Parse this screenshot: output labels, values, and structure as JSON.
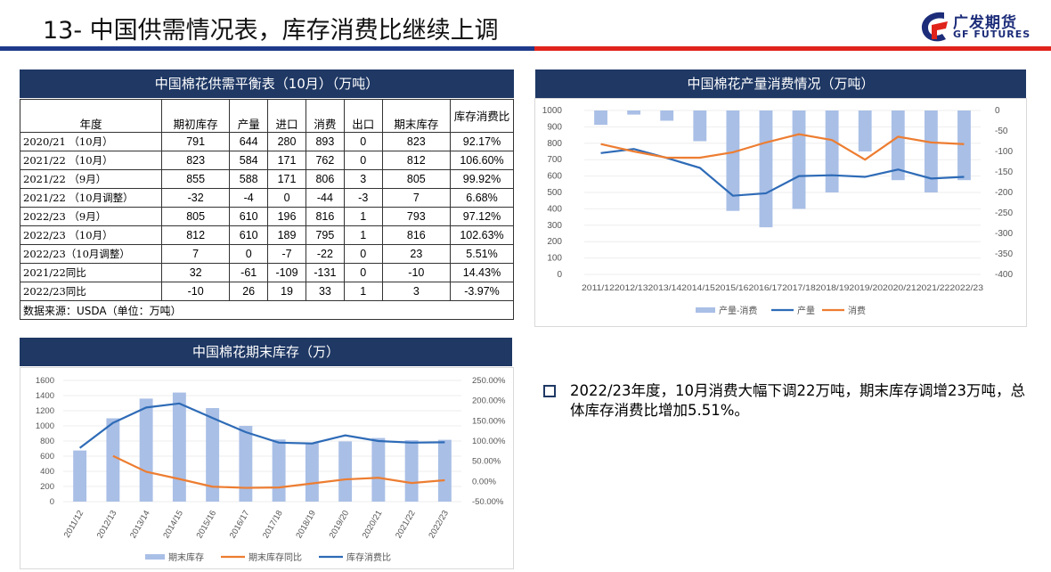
{
  "header": {
    "title": "13- 中国供需情况表，库存消费比继续上调",
    "logo_cn": "广发期货",
    "logo_en": "GF FUTURES"
  },
  "table": {
    "title": "中国棉花供需平衡表（10月）（万吨）",
    "columns": [
      "年度",
      "期初库存",
      "产量",
      "进口",
      "消费",
      "出口",
      "期末库存",
      "库存消费比"
    ],
    "rows": [
      [
        "2020/21 （10月）",
        "791",
        "644",
        "280",
        "893",
        "0",
        "823",
        "92.17%"
      ],
      [
        "2021/22 （10月）",
        "823",
        "584",
        "171",
        "762",
        "0",
        "812",
        "106.60%"
      ],
      [
        "2021/22 （9月）",
        "855",
        "588",
        "171",
        "806",
        "3",
        "805",
        "99.92%"
      ],
      [
        "2021/22 （10月调整）",
        "-32",
        "-4",
        "0",
        "-44",
        "-3",
        "7",
        "6.68%"
      ],
      [
        "2022/23 （9月）",
        "805",
        "610",
        "196",
        "816",
        "1",
        "793",
        "97.12%"
      ],
      [
        "2022/23 （10月）",
        "812",
        "610",
        "189",
        "795",
        "1",
        "816",
        "102.63%"
      ],
      [
        "2022/23（10月调整）",
        "7",
        "0",
        "-7",
        "-22",
        "0",
        "23",
        "5.51%"
      ],
      [
        "2021/22同比",
        "32",
        "-61",
        "-109",
        "-131",
        "0",
        "-10",
        "14.43%"
      ],
      [
        "2022/23同比",
        "-10",
        "26",
        "19",
        "33",
        "1",
        "3",
        "-3.97%"
      ]
    ],
    "source": "数据来源：USDA（单位：万吨）"
  },
  "chart_data": [
    {
      "type": "bar",
      "title": "中国棉花产量消费情况（万吨）",
      "categories": [
        "2011/12",
        "2012/13",
        "2013/14",
        "2014/15",
        "2015/16",
        "2016/17",
        "2017/18",
        "2018/19",
        "2019/20",
        "2020/21",
        "2021/22",
        "2022/23"
      ],
      "series": [
        {
          "name": "产量-消费",
          "axis": "right",
          "type": "bar",
          "color": "#a9bfe6",
          "values": [
            -35,
            -10,
            -25,
            -75,
            -245,
            -285,
            -240,
            -200,
            -100,
            -170,
            -200,
            -170
          ]
        },
        {
          "name": "产量",
          "axis": "left",
          "type": "line",
          "color": "#2e6bb7",
          "values": [
            740,
            765,
            710,
            650,
            480,
            495,
            600,
            605,
            595,
            640,
            585,
            595
          ]
        },
        {
          "name": "消费",
          "axis": "left",
          "type": "line",
          "color": "#ed7d31",
          "values": [
            795,
            750,
            712,
            712,
            745,
            805,
            855,
            820,
            700,
            840,
            805,
            795
          ]
        }
      ],
      "y_left_ticks": [
        "1000",
        "900",
        "800",
        "700",
        "600",
        "500",
        "400",
        "300",
        "200",
        "100",
        "0"
      ],
      "y_right_ticks": [
        "0",
        "-50",
        "-100",
        "-150",
        "-200",
        "-250",
        "-300",
        "-350",
        "-400"
      ],
      "ylim_left": [
        0,
        1000
      ],
      "ylim_right": [
        -400,
        0
      ],
      "x_tick_text": "2011/122012/132013/142014/152015/162016/172017/182018/192019/202020/212021/222022/23",
      "legend_position": "bottom"
    },
    {
      "type": "bar",
      "title": "中国棉花期末库存（万）",
      "categories": [
        "2011/12",
        "2012/13",
        "2013/14",
        "2014/15",
        "2015/16",
        "2016/17",
        "2017/18",
        "2018/19",
        "2019/20",
        "2020/21",
        "2021/22",
        "2022/23"
      ],
      "series": [
        {
          "name": "期末库存",
          "axis": "left",
          "type": "bar",
          "color": "#a9bfe6",
          "values": [
            675,
            1100,
            1360,
            1440,
            1235,
            1000,
            820,
            775,
            795,
            840,
            810,
            816
          ]
        },
        {
          "name": "期末库存同比",
          "axis": "right",
          "type": "line",
          "color": "#ed7d31",
          "values": [
            null,
            63,
            24,
            6,
            -13,
            -16,
            -15,
            -5,
            5,
            9,
            -4,
            3
          ]
        },
        {
          "name": "库存消费比",
          "axis": "right",
          "type": "line",
          "color": "#2e6bb7",
          "values": [
            83,
            145,
            183,
            193,
            157,
            122,
            96,
            94,
            114,
            100,
            96,
            97
          ]
        }
      ],
      "y_left_ticks": [
        "1600",
        "1400",
        "1200",
        "1000",
        "800",
        "600",
        "400",
        "200",
        "0"
      ],
      "y_right_ticks": [
        "250.00%",
        "200.00%",
        "150.00%",
        "100.00%",
        "50.00%",
        "0.00%",
        "-50.00%"
      ],
      "ylim_left": [
        0,
        1600
      ],
      "ylim_right": [
        -50,
        250
      ],
      "legend_position": "bottom"
    }
  ],
  "bullet": {
    "text": "2022/23年度，10月消费大幅下调22万吨，期末库存调增23万吨，总体库存消费比增加5.51%。"
  }
}
